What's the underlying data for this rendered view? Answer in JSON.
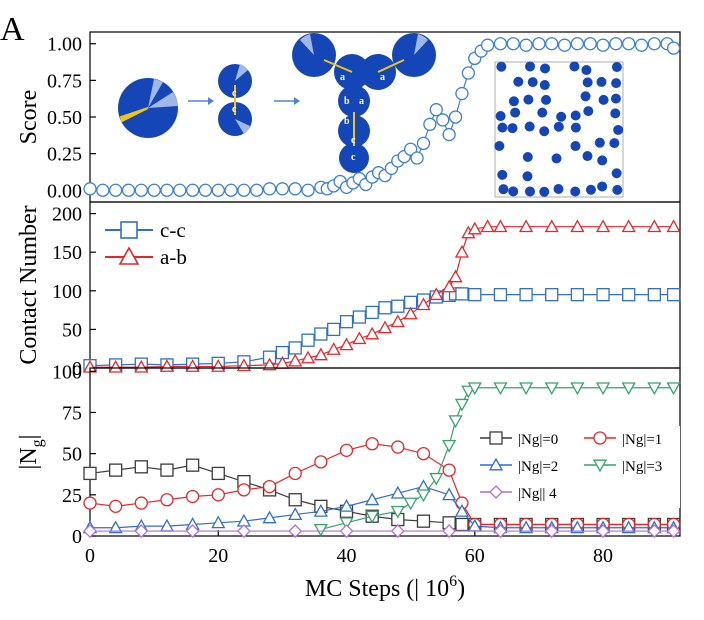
{
  "panel_label": "A",
  "xlabel": "MC Steps (| 10",
  "xlabel_sup": "6",
  "xlabel_close": ")",
  "colors": {
    "score": "#3a7fd5",
    "cc": "#2f6fc9",
    "ab": "#e8262a",
    "ng0": "#3b3b3b",
    "ng1": "#e8262a",
    "ng2": "#2f6fc9",
    "ng3": "#36a36a",
    "ng4": "#b36bd8",
    "sphere_blue": "#1546b8",
    "patch_yellow": "#f0c419",
    "arrow": "#4a86d0"
  },
  "chart_data": [
    {
      "type": "scatter",
      "title": "",
      "ylabel": "Score",
      "xlim": [
        0,
        92
      ],
      "ylim": [
        -0.08,
        1.08
      ],
      "yticks": [
        "0.00",
        "0.25",
        "0.50",
        "0.75",
        "1.00"
      ],
      "xticks": [],
      "series": [
        {
          "marker": "circle",
          "x": [
            0,
            2,
            4,
            6,
            8,
            10,
            12,
            14,
            16,
            18,
            20,
            22,
            24,
            26,
            28,
            30,
            32,
            34,
            36,
            37,
            38,
            39,
            40,
            41,
            42,
            43,
            44,
            45,
            46,
            47,
            48,
            49,
            50,
            51,
            52,
            53,
            54,
            55,
            56,
            57,
            58,
            59,
            60,
            61,
            62,
            64,
            66,
            68,
            70,
            72,
            74,
            76,
            78,
            80,
            82,
            84,
            86,
            88,
            90,
            91
          ],
          "y": [
            0.01,
            0.0,
            0.0,
            0.0,
            0.0,
            0.0,
            0.0,
            0.0,
            0.0,
            0.0,
            0.0,
            0.0,
            0.0,
            0.0,
            0.01,
            0.01,
            0.01,
            0.0,
            0.02,
            0.01,
            0.03,
            0.06,
            0.02,
            0.05,
            0.08,
            0.04,
            0.09,
            0.12,
            0.1,
            0.15,
            0.2,
            0.23,
            0.28,
            0.22,
            0.32,
            0.45,
            0.55,
            0.48,
            0.38,
            0.5,
            0.66,
            0.8,
            0.9,
            0.95,
            0.99,
            1.0,
            1.0,
            0.99,
            1.0,
            1.0,
            0.99,
            1.0,
            1.0,
            0.99,
            1.0,
            1.0,
            0.99,
            1.0,
            1.0,
            0.97
          ]
        }
      ],
      "inset_labels": [
        "c",
        "c",
        "a",
        "a",
        "b",
        "a",
        "b",
        "c",
        "c"
      ]
    },
    {
      "type": "line",
      "title": "",
      "ylabel": "Contact Number",
      "xlim": [
        0,
        92
      ],
      "ylim": [
        0,
        215
      ],
      "yticks": [
        "0",
        "50",
        "100",
        "150",
        "200"
      ],
      "xticks": [],
      "legend_position": "top-left",
      "series": [
        {
          "name": "c-c",
          "marker": "square",
          "x": [
            0,
            4,
            8,
            12,
            16,
            20,
            24,
            28,
            30,
            32,
            34,
            36,
            38,
            40,
            42,
            44,
            46,
            48,
            50,
            52,
            54,
            56,
            57,
            58,
            60,
            64,
            68,
            72,
            76,
            80,
            84,
            88,
            91
          ],
          "y": [
            3,
            4,
            5,
            4,
            5,
            6,
            8,
            14,
            20,
            26,
            36,
            44,
            50,
            60,
            66,
            72,
            78,
            80,
            85,
            88,
            92,
            94,
            96,
            96,
            95,
            95,
            95,
            95,
            95,
            95,
            95,
            95,
            95
          ]
        },
        {
          "name": "a-b",
          "marker": "triangle",
          "x": [
            0,
            4,
            8,
            12,
            16,
            20,
            24,
            28,
            30,
            32,
            34,
            36,
            38,
            40,
            42,
            44,
            46,
            48,
            50,
            52,
            54,
            56,
            57,
            58,
            59,
            60,
            62,
            64,
            68,
            72,
            76,
            80,
            84,
            88,
            91
          ],
          "y": [
            1,
            1,
            1,
            2,
            2,
            2,
            3,
            4,
            6,
            9,
            13,
            17,
            24,
            30,
            38,
            44,
            52,
            60,
            70,
            82,
            95,
            105,
            118,
            150,
            175,
            180,
            183,
            183,
            183,
            183,
            183,
            183,
            183,
            183,
            183
          ]
        }
      ]
    },
    {
      "type": "line",
      "title": "",
      "ylabel": "|N",
      "ylabel_sub": "g",
      "ylabel_close": "|",
      "xlim": [
        0,
        92
      ],
      "ylim": [
        0,
        102
      ],
      "yticks": [
        "0",
        "25",
        "50",
        "75",
        "100"
      ],
      "xticks": [
        "0",
        "20",
        "40",
        "60",
        "80"
      ],
      "legend_position": "middle-right",
      "series": [
        {
          "name": "|Ng|=0",
          "marker": "square",
          "x": [
            0,
            4,
            8,
            12,
            16,
            20,
            24,
            28,
            32,
            36,
            40,
            44,
            48,
            52,
            56,
            58,
            60,
            64,
            68,
            72,
            76,
            80,
            84,
            88,
            91
          ],
          "y": [
            38,
            40,
            42,
            40,
            43,
            38,
            33,
            28,
            22,
            18,
            15,
            12,
            10,
            9,
            8,
            7,
            7,
            7,
            7,
            7,
            7,
            7,
            7,
            7,
            7
          ]
        },
        {
          "name": "|Ng|=1",
          "marker": "circle",
          "x": [
            0,
            4,
            8,
            12,
            16,
            20,
            24,
            28,
            32,
            36,
            40,
            44,
            48,
            52,
            56,
            58,
            60,
            64,
            68,
            72,
            76,
            80,
            84,
            88,
            91
          ],
          "y": [
            20,
            18,
            20,
            22,
            24,
            25,
            28,
            30,
            38,
            45,
            52,
            56,
            54,
            50,
            40,
            20,
            7,
            7,
            7,
            7,
            7,
            7,
            7,
            7,
            7
          ]
        },
        {
          "name": "|Ng|=2",
          "marker": "triangle",
          "x": [
            0,
            4,
            8,
            12,
            16,
            20,
            24,
            28,
            32,
            36,
            40,
            44,
            48,
            52,
            56,
            58,
            60,
            64,
            68,
            72,
            76,
            80,
            84,
            88,
            91
          ],
          "y": [
            5,
            5,
            6,
            6,
            7,
            8,
            9,
            11,
            13,
            15,
            18,
            22,
            26,
            30,
            25,
            15,
            6,
            5,
            5,
            5,
            5,
            5,
            5,
            5,
            5
          ]
        },
        {
          "name": "|Ng|=3",
          "marker": "triangle-down",
          "x": [
            36,
            40,
            44,
            48,
            50,
            52,
            54,
            56,
            57,
            58,
            59,
            60,
            64,
            68,
            72,
            76,
            80,
            84,
            88,
            91
          ],
          "y": [
            4,
            8,
            12,
            15,
            20,
            25,
            35,
            55,
            70,
            80,
            88,
            90,
            90,
            90,
            90,
            90,
            90,
            90,
            90,
            90
          ]
        },
        {
          "name": "|Ng|| 4",
          "marker": "diamond",
          "x": [
            0,
            8,
            16,
            24,
            32,
            40,
            48,
            56,
            64,
            72,
            80,
            88,
            91
          ],
          "y": [
            3,
            3,
            3,
            3,
            3,
            3,
            3,
            3,
            3,
            3,
            3,
            3,
            3
          ]
        }
      ]
    }
  ]
}
